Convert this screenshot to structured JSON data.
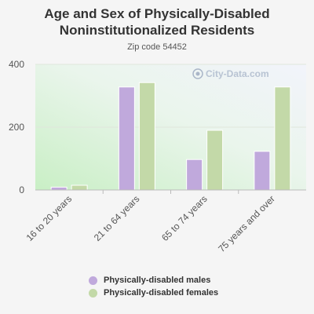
{
  "chart_data": {
    "type": "bar",
    "title_line1": "Age and Sex of Physically-Disabled",
    "title_line2": "Noninstitutionalized Residents",
    "subtitle": "Zip code 54452",
    "watermark": "City-Data.com",
    "categories": [
      "16 to 20 years",
      "21 to 64 years",
      "65 to 74 years",
      "75 years and over"
    ],
    "series": [
      {
        "name": "Physically-disabled males",
        "color": "#c0a9dc",
        "values": [
          9,
          328,
          97,
          123
        ]
      },
      {
        "name": "Physically-disabled females",
        "color": "#c3d9a8",
        "values": [
          15,
          342,
          190,
          328
        ]
      }
    ],
    "yticks": [
      0,
      200,
      400
    ],
    "ylim": [
      0,
      400
    ],
    "grid": true,
    "legend_position": "bottom"
  }
}
